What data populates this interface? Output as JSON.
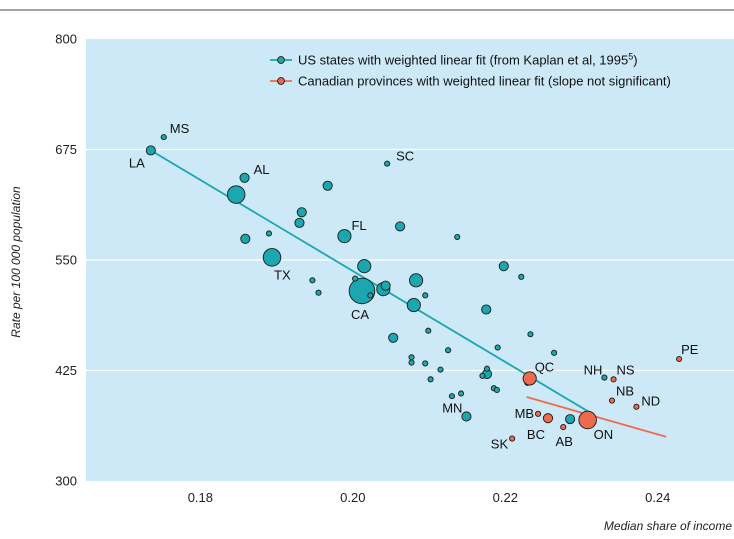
{
  "chart_data": {
    "type": "scatter",
    "xlabel": "Median share of income",
    "ylabel": "Rate per 100 000 population",
    "xlim": [
      0.165,
      0.25
    ],
    "ylim": [
      300,
      800
    ],
    "x_ticks": [
      "0.18",
      "0.20",
      "0.22",
      "0.24"
    ],
    "x_tick_values": [
      0.18,
      0.2,
      0.22,
      0.24
    ],
    "y_ticks": [
      "300",
      "425",
      "550",
      "675",
      "800"
    ],
    "y_tick_values": [
      300,
      425,
      550,
      675,
      800
    ],
    "grid": "horizontal",
    "legend_position": "top-right",
    "colors": {
      "background": "#cde8f6",
      "us": "#1aa7b0",
      "ca": "#ee6a4f",
      "grid": "#ffffff"
    },
    "series": [
      {
        "name": "US states with weighted linear fit (from Kaplan et al, 1995",
        "name_sup": "5",
        "name_suffix": ")",
        "color": "#1aa7b0",
        "fit": [
          [
            0.1735,
            674
          ],
          [
            0.231,
            378
          ]
        ],
        "points": [
          {
            "x": 0.1752,
            "y": 689,
            "size": 1,
            "label": "MS"
          },
          {
            "x": 0.1735,
            "y": 674,
            "size": 2,
            "label": "LA"
          },
          {
            "x": 0.1858,
            "y": 643,
            "size": 2,
            "label": "AL"
          },
          {
            "x": 0.1847,
            "y": 624,
            "size": 4,
            "label": ""
          },
          {
            "x": 0.2045,
            "y": 659,
            "size": 1,
            "label": "SC"
          },
          {
            "x": 0.1967,
            "y": 634,
            "size": 2,
            "label": ""
          },
          {
            "x": 0.1933,
            "y": 604,
            "size": 2,
            "label": ""
          },
          {
            "x": 0.193,
            "y": 592,
            "size": 2,
            "label": ""
          },
          {
            "x": 0.1859,
            "y": 574,
            "size": 2,
            "label": ""
          },
          {
            "x": 0.189,
            "y": 580,
            "size": 1,
            "label": ""
          },
          {
            "x": 0.1989,
            "y": 577,
            "size": 3,
            "label": "FL"
          },
          {
            "x": 0.2062,
            "y": 588,
            "size": 2,
            "label": ""
          },
          {
            "x": 0.2137,
            "y": 576,
            "size": 1,
            "label": ""
          },
          {
            "x": 0.1894,
            "y": 553,
            "size": 4,
            "label": "TX"
          },
          {
            "x": 0.2015,
            "y": 543,
            "size": 3,
            "label": ""
          },
          {
            "x": 0.2198,
            "y": 543,
            "size": 2,
            "label": ""
          },
          {
            "x": 0.2221,
            "y": 531,
            "size": 1,
            "label": ""
          },
          {
            "x": 0.1947,
            "y": 527,
            "size": 1,
            "label": ""
          },
          {
            "x": 0.1955,
            "y": 513,
            "size": 1,
            "label": ""
          },
          {
            "x": 0.2003,
            "y": 529,
            "size": 1,
            "label": ""
          },
          {
            "x": 0.2083,
            "y": 527,
            "size": 3,
            "label": ""
          },
          {
            "x": 0.2012,
            "y": 515,
            "size": 6,
            "label": "CA"
          },
          {
            "x": 0.204,
            "y": 517,
            "size": 3,
            "label": ""
          },
          {
            "x": 0.2043,
            "y": 521,
            "size": 2,
            "label": ""
          },
          {
            "x": 0.2023,
            "y": 510,
            "size": 1,
            "label": ""
          },
          {
            "x": 0.2095,
            "y": 510,
            "size": 1,
            "label": ""
          },
          {
            "x": 0.208,
            "y": 499,
            "size": 3,
            "label": ""
          },
          {
            "x": 0.2175,
            "y": 494,
            "size": 2,
            "label": ""
          },
          {
            "x": 0.2099,
            "y": 470,
            "size": 1,
            "label": ""
          },
          {
            "x": 0.2053,
            "y": 462,
            "size": 2,
            "label": ""
          },
          {
            "x": 0.2233,
            "y": 466,
            "size": 1,
            "label": ""
          },
          {
            "x": 0.219,
            "y": 451,
            "size": 1,
            "label": ""
          },
          {
            "x": 0.2125,
            "y": 448,
            "size": 1,
            "label": ""
          },
          {
            "x": 0.2264,
            "y": 445,
            "size": 1,
            "label": ""
          },
          {
            "x": 0.2077,
            "y": 440,
            "size": 1,
            "label": ""
          },
          {
            "x": 0.2077,
            "y": 434,
            "size": 1,
            "label": ""
          },
          {
            "x": 0.2095,
            "y": 433,
            "size": 1,
            "label": ""
          },
          {
            "x": 0.2115,
            "y": 426,
            "size": 1,
            "label": ""
          },
          {
            "x": 0.2176,
            "y": 427,
            "size": 1,
            "label": ""
          },
          {
            "x": 0.217,
            "y": 419,
            "size": 1,
            "label": ""
          },
          {
            "x": 0.2176,
            "y": 421,
            "size": 2,
            "label": ""
          },
          {
            "x": 0.2102,
            "y": 415,
            "size": 1,
            "label": ""
          },
          {
            "x": 0.2185,
            "y": 405,
            "size": 1,
            "label": ""
          },
          {
            "x": 0.2189,
            "y": 403,
            "size": 1,
            "label": ""
          },
          {
            "x": 0.2142,
            "y": 399,
            "size": 1,
            "label": ""
          },
          {
            "x": 0.213,
            "y": 396,
            "size": 1,
            "label": ""
          },
          {
            "x": 0.2149,
            "y": 373,
            "size": 2,
            "label": "MN"
          },
          {
            "x": 0.2229,
            "y": 411,
            "size": 1,
            "label": ""
          },
          {
            "x": 0.233,
            "y": 417,
            "size": 1,
            "label": "NH"
          },
          {
            "x": 0.2285,
            "y": 370,
            "size": 2,
            "label": ""
          }
        ]
      },
      {
        "name": "Canadian provinces with weighted linear fit (slope not significant)",
        "color": "#ee6a4f",
        "fit": [
          [
            0.2228,
            395
          ],
          [
            0.2411,
            350
          ]
        ],
        "points": [
          {
            "x": 0.2232,
            "y": 416,
            "size": 3,
            "label": "QC"
          },
          {
            "x": 0.2428,
            "y": 438,
            "size": 1,
            "label": "PE"
          },
          {
            "x": 0.2342,
            "y": 415,
            "size": 1,
            "label": "NS"
          },
          {
            "x": 0.234,
            "y": 391,
            "size": 1,
            "label": "NB"
          },
          {
            "x": 0.2372,
            "y": 384,
            "size": 1,
            "label": "ND"
          },
          {
            "x": 0.2308,
            "y": 369,
            "size": 4,
            "label": "ON"
          },
          {
            "x": 0.2276,
            "y": 361,
            "size": 1,
            "label": "AB"
          },
          {
            "x": 0.2256,
            "y": 371,
            "size": 2,
            "label": "BC"
          },
          {
            "x": 0.2243,
            "y": 376,
            "size": 1,
            "label": "MB"
          },
          {
            "x": 0.2209,
            "y": 348,
            "size": 1,
            "label": "SK"
          }
        ]
      }
    ]
  }
}
